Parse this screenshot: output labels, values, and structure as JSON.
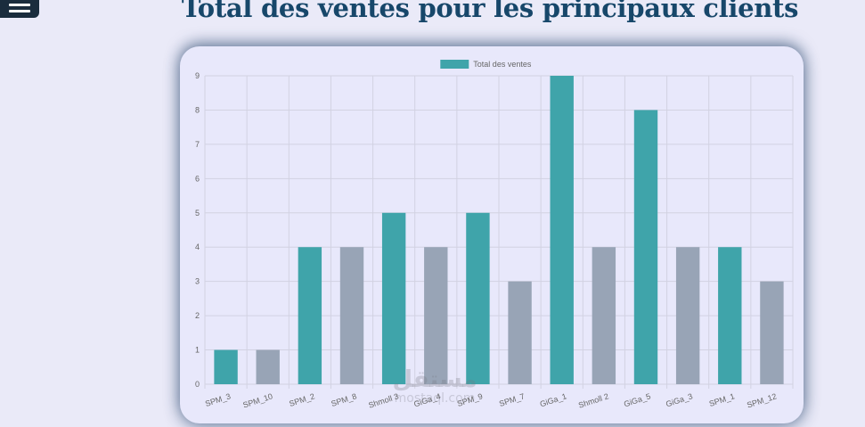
{
  "header": {
    "menu_icon": "hamburger-menu-icon",
    "title": "Total des ventes pour les principaux clients"
  },
  "chart_data": {
    "type": "bar",
    "title": "",
    "xlabel": "",
    "ylabel": "",
    "ylim": [
      0,
      9
    ],
    "yticks": [
      0,
      1,
      2,
      3,
      4,
      5,
      6,
      7,
      8,
      9
    ],
    "grid": true,
    "legend": {
      "position": "top-center",
      "entries": [
        "Total des ventes"
      ]
    },
    "categories": [
      "SPM_3",
      "SPM_10",
      "SPM_2",
      "SPM_8",
      "Shmoll 3",
      "GiGa_4",
      "SPM_9",
      "SPM_7",
      "GiGa_1",
      "Shmoll 2",
      "GiGa_5",
      "GiGa_3",
      "SPM_1",
      "SPM_12"
    ],
    "series": [
      {
        "name": "Total des ventes",
        "values": [
          1,
          1,
          4,
          4,
          5,
          4,
          5,
          3,
          9,
          4,
          8,
          4,
          4,
          3
        ],
        "colors": [
          "#3fa4aa",
          "#98a4b6",
          "#3fa4aa",
          "#98a4b6",
          "#3fa4aa",
          "#98a4b6",
          "#3fa4aa",
          "#98a4b6",
          "#3fa4aa",
          "#98a4b6",
          "#3fa4aa",
          "#98a4b6",
          "#3fa4aa",
          "#98a4b6"
        ],
        "legend_color": "#3fa4aa"
      }
    ]
  },
  "watermark": {
    "arabic": "مستقل",
    "latin": "mostaql.com"
  }
}
